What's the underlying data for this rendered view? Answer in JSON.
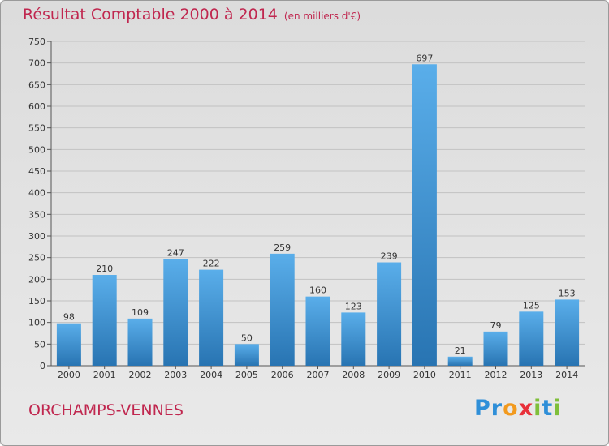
{
  "chart_data": {
    "type": "bar",
    "title": "Résultat Comptable 2000 à 2014",
    "subtitle": "(en milliers d'€)",
    "categories": [
      "2000",
      "2001",
      "2002",
      "2003",
      "2004",
      "2005",
      "2006",
      "2007",
      "2008",
      "2009",
      "2010",
      "2011",
      "2012",
      "2013",
      "2014"
    ],
    "values": [
      98,
      210,
      109,
      247,
      222,
      50,
      259,
      160,
      123,
      239,
      697,
      21,
      79,
      125,
      153
    ],
    "yticks": [
      0,
      50,
      100,
      150,
      200,
      250,
      300,
      350,
      400,
      450,
      500,
      550,
      600,
      650,
      700,
      750
    ],
    "ylim": [
      0,
      750
    ],
    "xlabel": "",
    "ylabel": "",
    "grid": true
  },
  "place_label": "ORCHAMPS-VENNES",
  "logo": {
    "letters": [
      "P",
      "r",
      "o",
      "x",
      "i",
      "t",
      "i"
    ],
    "colors": [
      "#2f8fd8",
      "#2f8fd8",
      "#f29a1e",
      "#e8303a",
      "#7fbf3a",
      "#2f8fd8",
      "#7fbf3a"
    ]
  },
  "colors": {
    "bar_top": "#5aaeea",
    "bar_bottom": "#2874b2",
    "accent": "#c0274f"
  }
}
